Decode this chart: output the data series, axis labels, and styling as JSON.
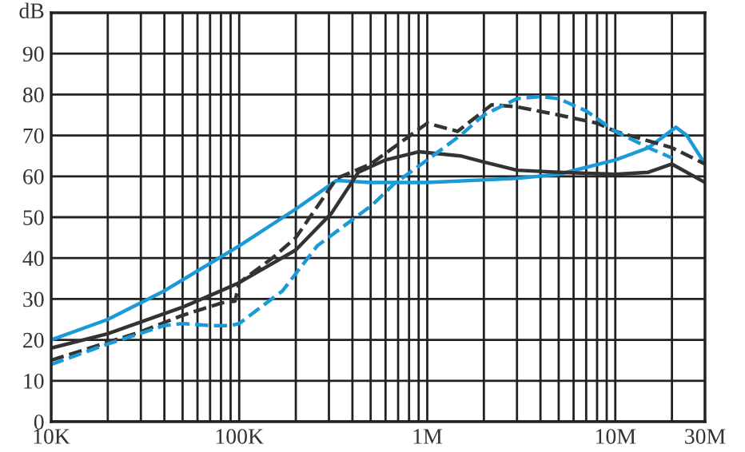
{
  "chart_data": {
    "type": "line",
    "ylabel": "dB",
    "log": "x",
    "grid": true,
    "legend": false,
    "marker": "none",
    "xlim": [
      10000,
      30000000
    ],
    "ylim": [
      0,
      100
    ],
    "yticks": [
      0,
      10,
      20,
      30,
      40,
      50,
      60,
      70,
      80,
      90
    ],
    "xticks": [
      {
        "value": 10000,
        "label": "10K"
      },
      {
        "value": 20000,
        "label": null
      },
      {
        "value": 30000,
        "label": null
      },
      {
        "value": 40000,
        "label": null
      },
      {
        "value": 50000,
        "label": null
      },
      {
        "value": 60000,
        "label": null
      },
      {
        "value": 70000,
        "label": null
      },
      {
        "value": 80000,
        "label": null
      },
      {
        "value": 90000,
        "label": null
      },
      {
        "value": 100000,
        "label": "100K"
      },
      {
        "value": 200000,
        "label": null
      },
      {
        "value": 300000,
        "label": null
      },
      {
        "value": 400000,
        "label": null
      },
      {
        "value": 500000,
        "label": null
      },
      {
        "value": 600000,
        "label": null
      },
      {
        "value": 700000,
        "label": null
      },
      {
        "value": 800000,
        "label": null
      },
      {
        "value": 900000,
        "label": null
      },
      {
        "value": 1000000,
        "label": "1M"
      },
      {
        "value": 2000000,
        "label": null
      },
      {
        "value": 3000000,
        "label": null
      },
      {
        "value": 4000000,
        "label": null
      },
      {
        "value": 5000000,
        "label": null
      },
      {
        "value": 6000000,
        "label": null
      },
      {
        "value": 7000000,
        "label": null
      },
      {
        "value": 8000000,
        "label": null
      },
      {
        "value": 9000000,
        "label": null
      },
      {
        "value": 10000000,
        "label": "10M"
      },
      {
        "value": 20000000,
        "label": null
      },
      {
        "value": 30000000,
        "label": "30M"
      }
    ],
    "series": [
      {
        "color": "#1a9ad6",
        "line_style": "solid",
        "x": [
          10000,
          20000,
          40000,
          100000,
          200000,
          330000,
          500000,
          1000000,
          3000000,
          5000000,
          10000000,
          15000000,
          21000000,
          24000000,
          30000000
        ],
        "values": [
          20,
          25,
          32,
          43,
          52,
          59,
          58.5,
          58.5,
          59.5,
          60.5,
          64,
          67,
          72,
          70,
          63
        ]
      },
      {
        "color": "#333333",
        "line_style": "solid",
        "x": [
          10000,
          20000,
          50000,
          80000,
          100000,
          200000,
          310000,
          430000,
          600000,
          900000,
          1500000,
          2000000,
          3000000,
          5000000,
          10000000,
          15000000,
          20000000,
          30000000
        ],
        "values": [
          18,
          21.5,
          28,
          32,
          34,
          42,
          51,
          61,
          64,
          66,
          65,
          63.5,
          61.5,
          61,
          60.5,
          61,
          63,
          58.5
        ]
      },
      {
        "color": "#333333",
        "line_style": "dashed",
        "x": [
          10000,
          30000,
          50000,
          80000,
          95000,
          100000,
          150000,
          200000,
          330000,
          500000,
          1000000,
          1450000,
          2200000,
          3000000,
          5000000,
          8000000,
          10000000,
          20000000,
          30000000
        ],
        "values": [
          15,
          22,
          26,
          29,
          29.5,
          34,
          40,
          45,
          59.5,
          63,
          73,
          71,
          77.5,
          77,
          75,
          73,
          71,
          67,
          63
        ]
      },
      {
        "color": "#1a9ad6",
        "line_style": "dashed",
        "x": [
          10000,
          20000,
          40000,
          50000,
          70000,
          90000,
          100000,
          170000,
          260000,
          510000,
          660000,
          1000000,
          1500000,
          2000000,
          3000000,
          4000000,
          5000000,
          7000000,
          10000000,
          15000000,
          20000000
        ],
        "values": [
          14,
          19,
          23.5,
          24,
          23.5,
          23.5,
          24,
          32,
          43,
          53,
          58,
          64,
          70,
          75,
          79,
          79.5,
          79,
          76,
          71,
          67,
          64.5
        ]
      }
    ]
  }
}
